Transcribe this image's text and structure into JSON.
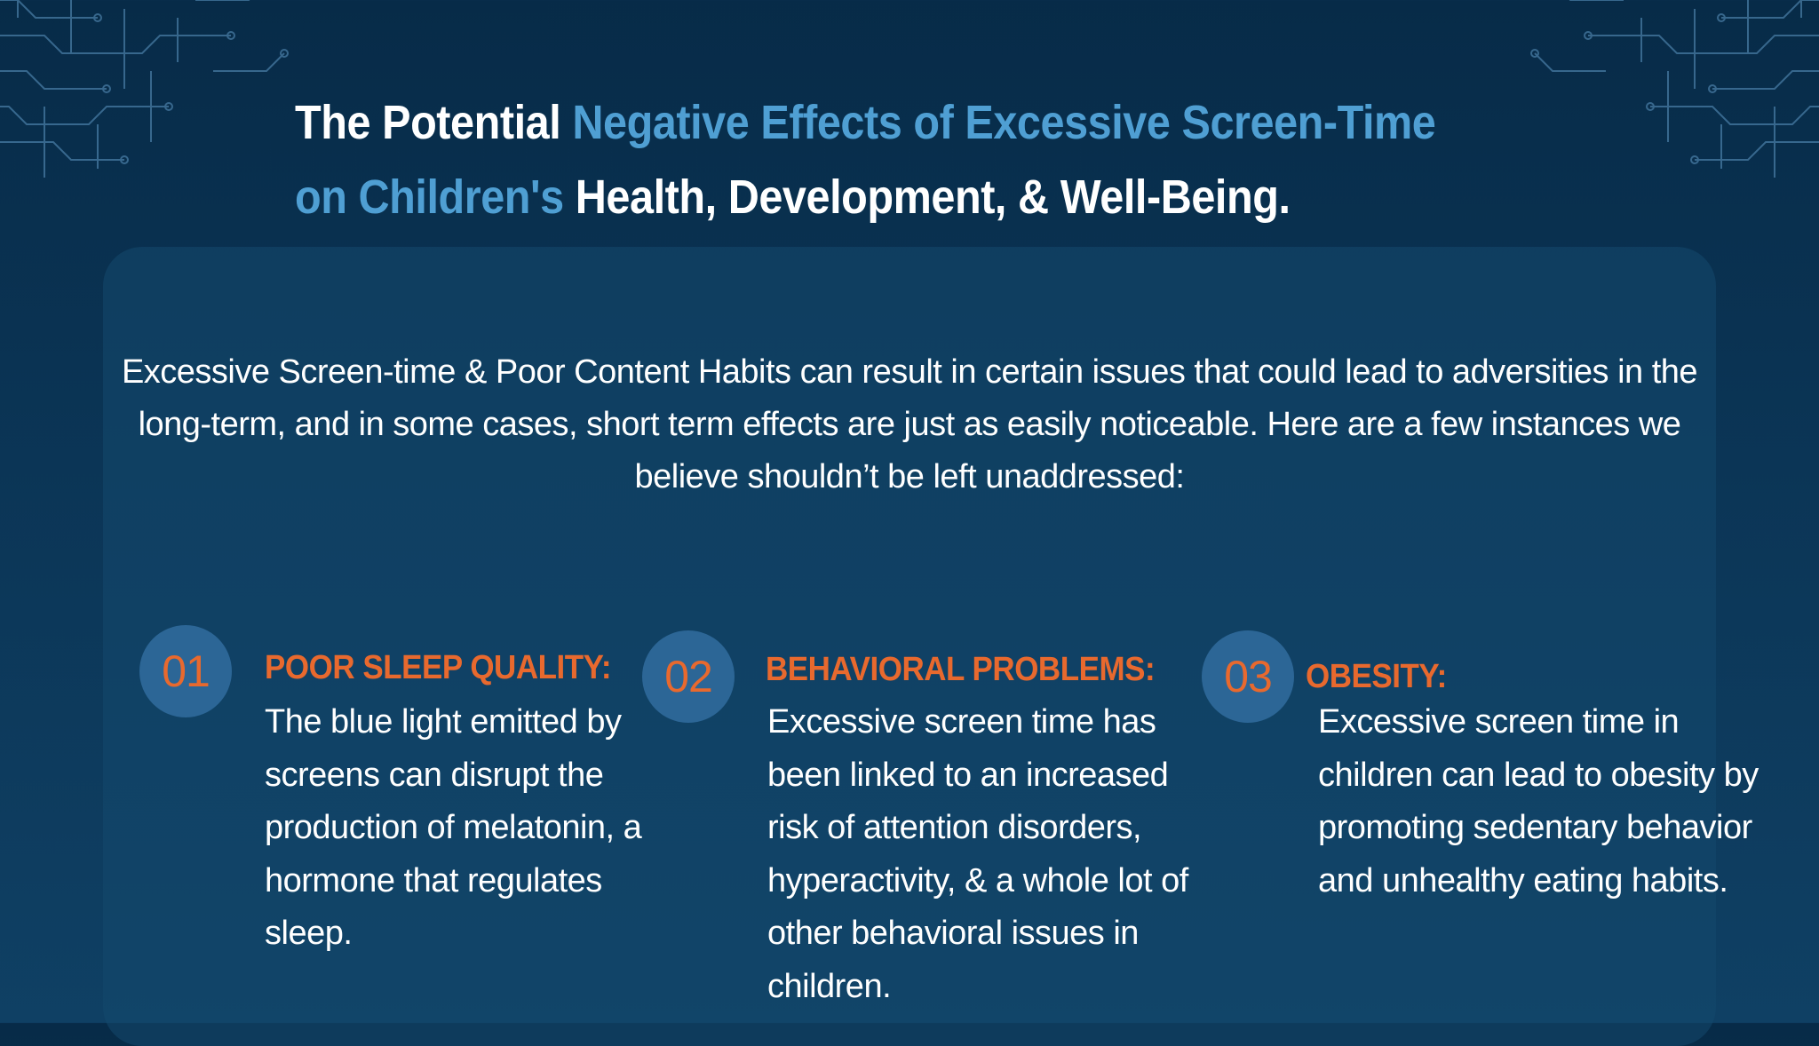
{
  "title": {
    "part1": "The Potential ",
    "part2": "Negative Effects of Excessive Screen-Time",
    "part3": "on Children's",
    "part4": " Health, Development, & Well-Being."
  },
  "intro": "Excessive Screen-time & Poor Content Habits can result in certain issues that could lead to adversities in the long-term, and in some cases, short term effects are just as easily noticeable. Here are a few instances we believe shouldn’t be left unaddressed:",
  "items": [
    {
      "number": "01",
      "heading": "POOR SLEEP QUALITY:",
      "body": "The blue light emitted by screens can disrupt the production of melatonin, a hormone that regulates sleep."
    },
    {
      "number": "02",
      "heading": "BEHAVIORAL PROBLEMS:",
      "body": "Excessive screen time has been linked to an increased risk of attention disorders, hyperactivity, & a whole lot of other behavioral issues in children."
    },
    {
      "number": "03",
      "heading": "OBESITY:",
      "body": "Excessive screen time in children can lead to obesity by promoting sedentary behavior and unhealthy eating habits."
    }
  ],
  "colors": {
    "background": "#0b3556",
    "accent_blue": "#4f9fd3",
    "accent_orange": "#e8692e",
    "circle": "#2c6696"
  }
}
